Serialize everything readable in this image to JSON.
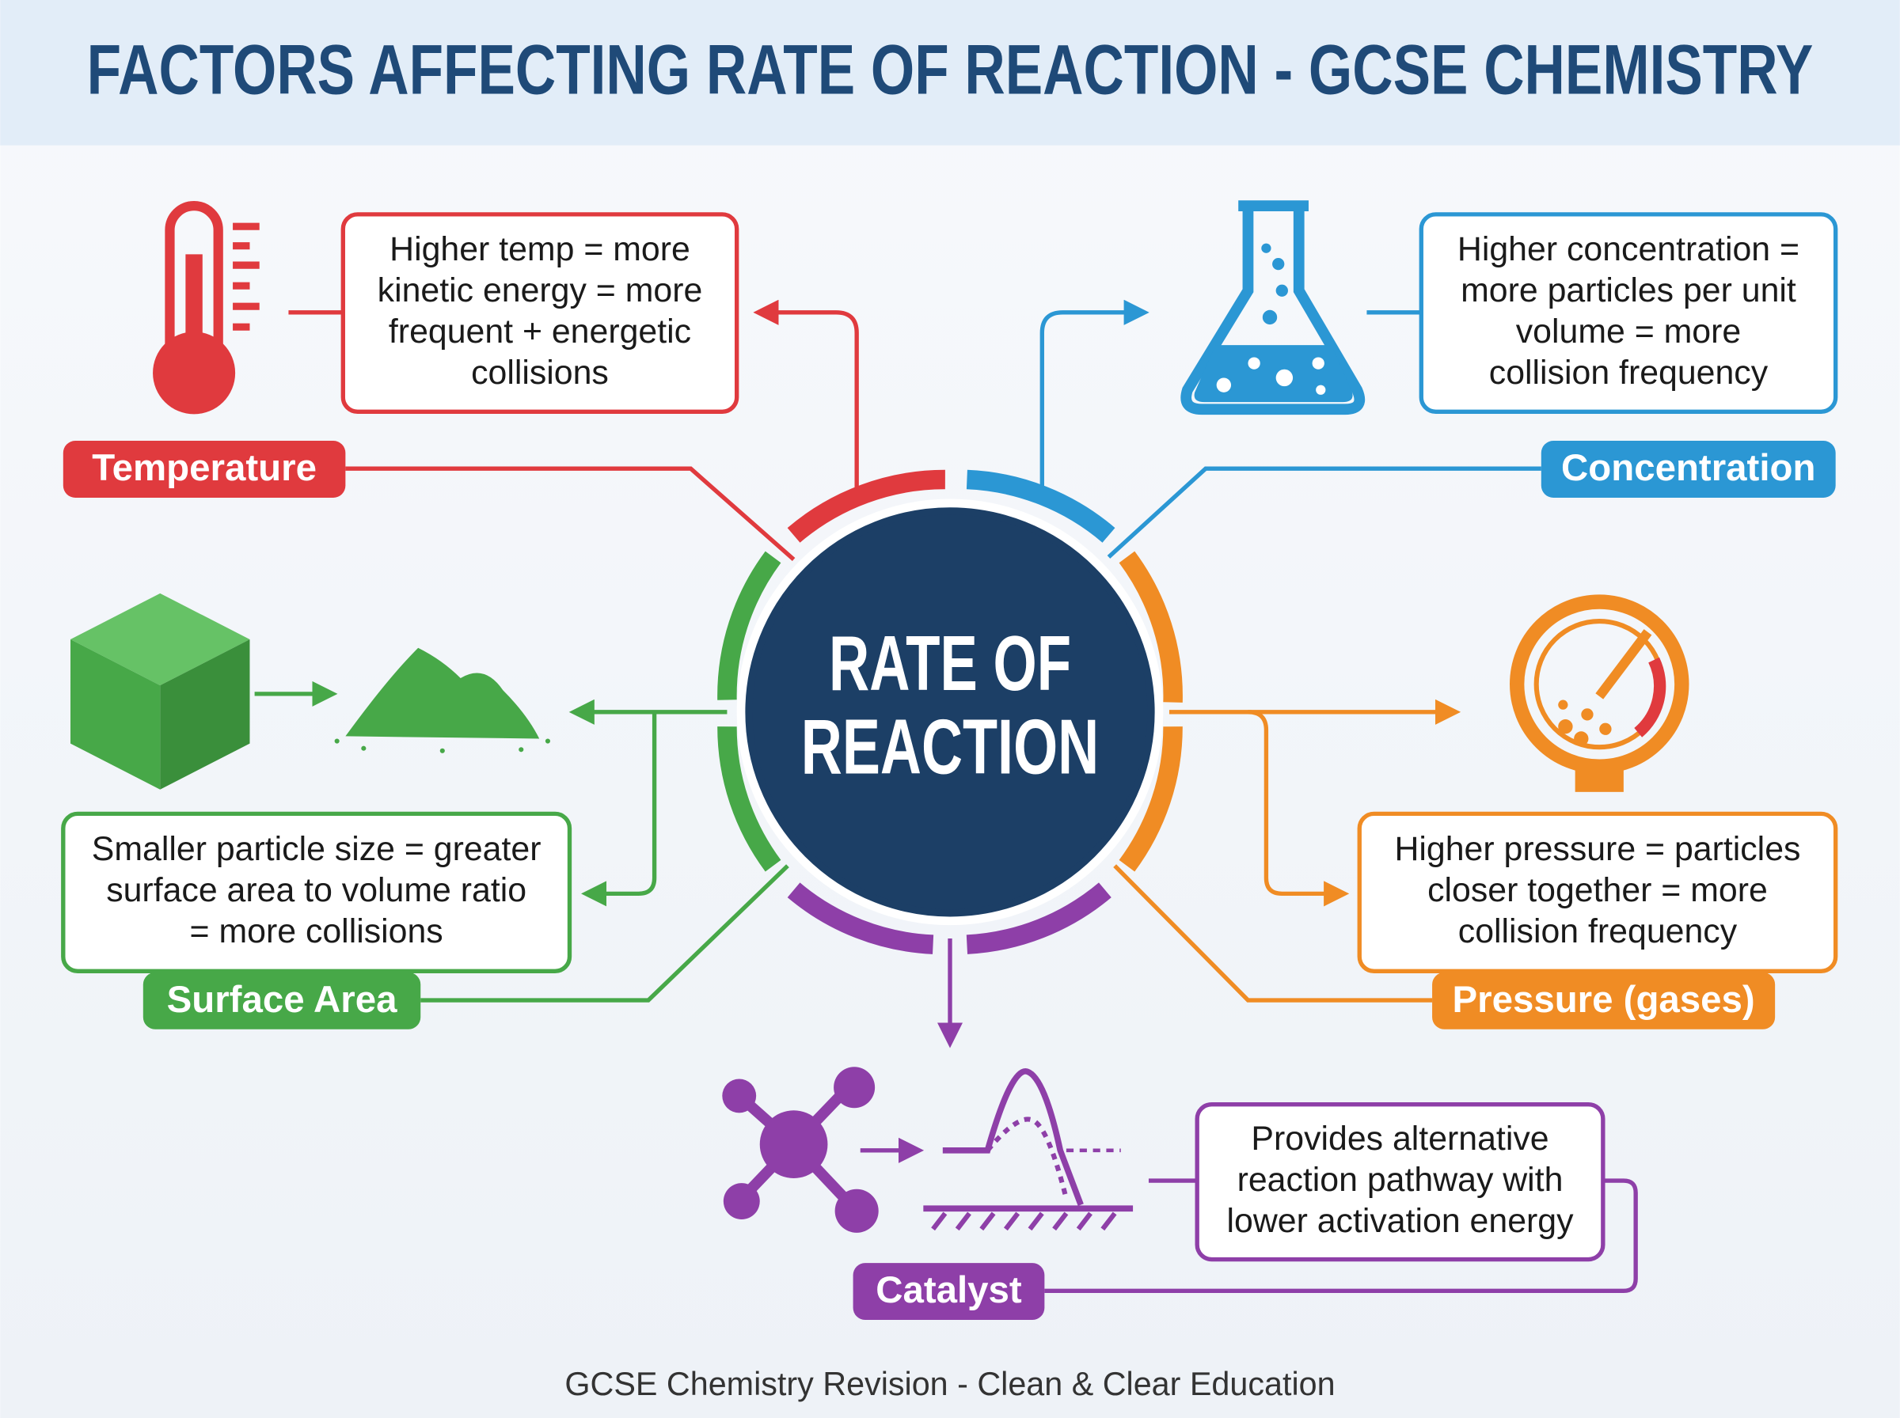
{
  "title": "FACTORS AFFECTING RATE OF REACTION - GCSE CHEMISTRY",
  "center": [
    "RATE OF",
    "REACTION"
  ],
  "factors": [
    {
      "label": "Temperature",
      "description": [
        "Higher temp = more",
        "kinetic energy = more",
        "frequent + energetic",
        "collisions"
      ]
    },
    {
      "label": "Concentration",
      "description": [
        "Higher concentration =",
        "more particles per unit",
        "volume = more",
        "collision frequency"
      ]
    },
    {
      "label": "Surface Area",
      "description": [
        "Smaller particle size = greater",
        "surface area to volume ratio",
        "= more collisions"
      ]
    },
    {
      "label": "Pressure (gases)",
      "description": [
        "Higher pressure = particles",
        "closer together = more",
        "collision frequency"
      ]
    },
    {
      "label": "Catalyst",
      "description": [
        "Provides alternative",
        "reaction pathway with",
        "lower activation energy"
      ]
    }
  ],
  "footer": "GCSE Chemistry Revision - Clean & Clear Education"
}
